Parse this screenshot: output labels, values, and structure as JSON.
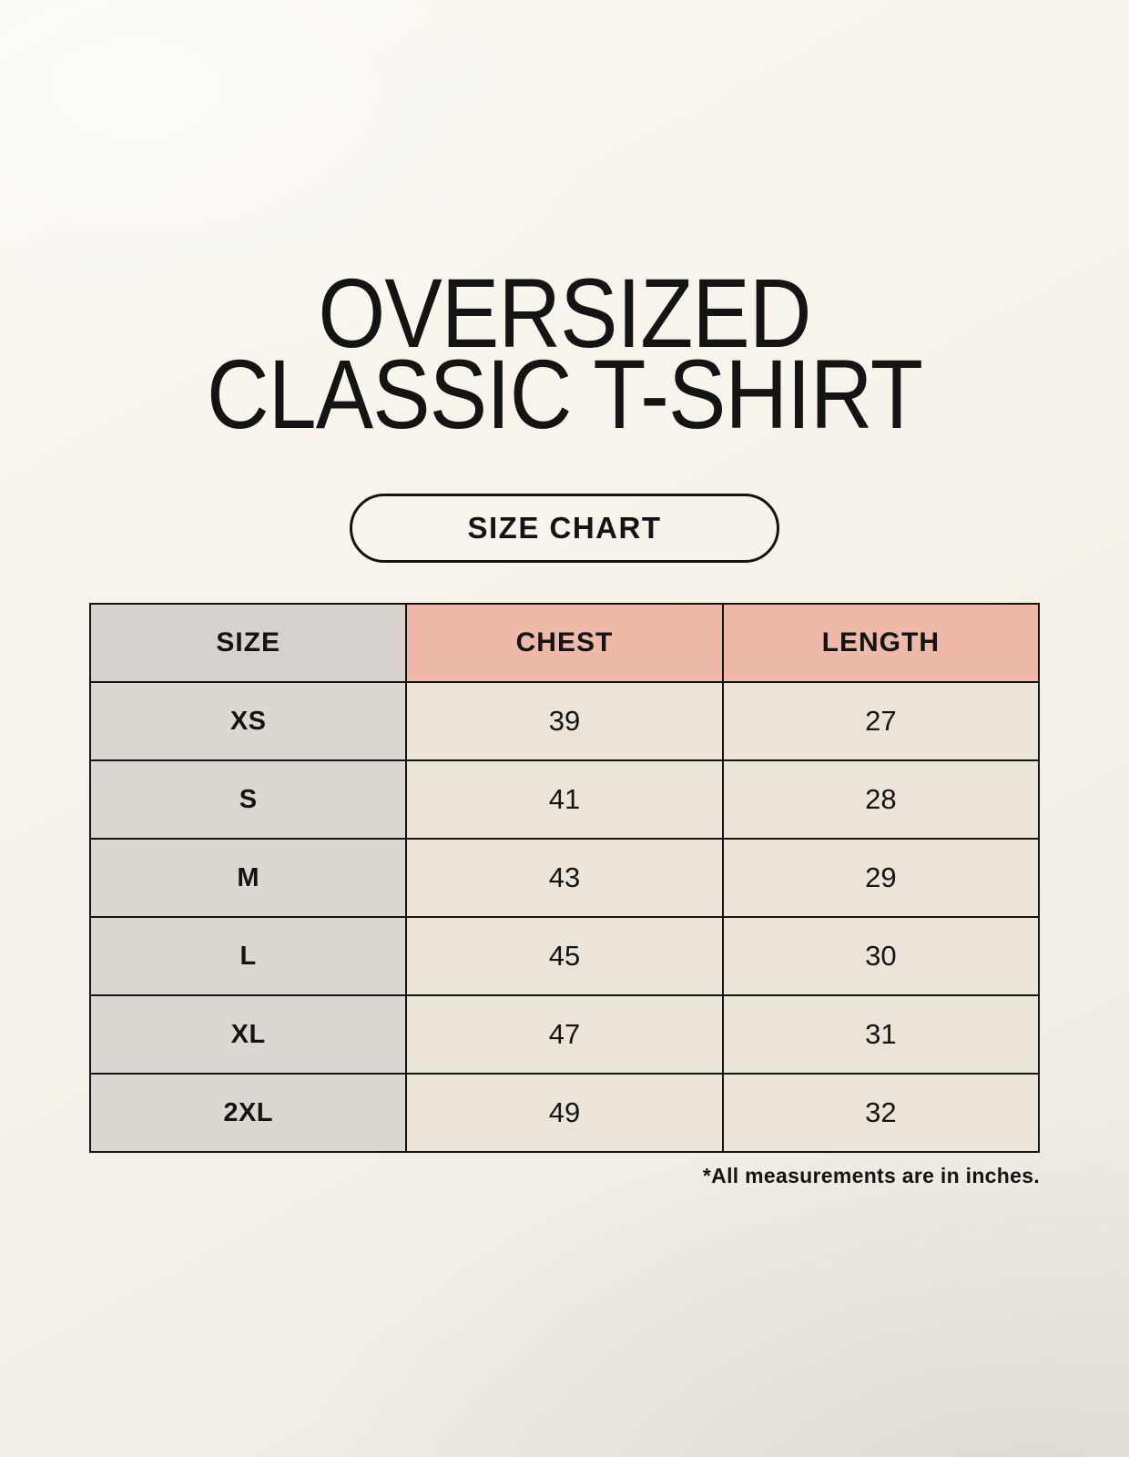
{
  "page": {
    "title_line1": "OVERSIZED",
    "title_line2": "CLASSIC T-SHIRT",
    "badge_label": "SIZE CHART",
    "footnote": "*All measurements are in inches."
  },
  "colors": {
    "background_top": "#fbf8f1",
    "background_mid": "#f6f2e9",
    "background_bottom": "#ece9e1",
    "header_size_bg": "#d8d2ce",
    "header_measure_bg": "#eeb9a8",
    "size_col_bg": "#ddd7d1",
    "value_cell_bg": "#ebe5d9",
    "border": "#141414",
    "text": "#141414"
  },
  "chart_data": {
    "type": "table",
    "title": "OVERSIZED CLASSIC T-SHIRT — SIZE CHART",
    "columns": [
      "SIZE",
      "CHEST",
      "LENGTH"
    ],
    "rows": [
      {
        "size": "XS",
        "chest": 39,
        "length": 27
      },
      {
        "size": "S",
        "chest": 41,
        "length": 28
      },
      {
        "size": "M",
        "chest": 43,
        "length": 29
      },
      {
        "size": "L",
        "chest": 45,
        "length": 30
      },
      {
        "size": "XL",
        "chest": 47,
        "length": 31
      },
      {
        "size": "2XL",
        "chest": 49,
        "length": 32
      }
    ],
    "units": "inches"
  }
}
